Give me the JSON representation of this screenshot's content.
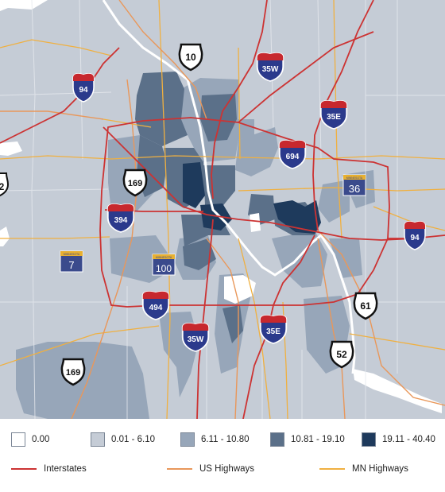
{
  "legend": {
    "classes": [
      {
        "label": "0.00",
        "color": "#ffffff"
      },
      {
        "label": "0.01 - 6.10",
        "color": "#c5ccd6"
      },
      {
        "label": "6.11 - 10.80",
        "color": "#97a6b9"
      },
      {
        "label": "10.81 - 19.10",
        "color": "#5b7089"
      },
      {
        "label": "19.11 - 40.40",
        "color": "#1e3a5c"
      }
    ],
    "lines": [
      {
        "label": "Interstates",
        "color": "#cc3333"
      },
      {
        "label": "US Highways",
        "color": "#e9975a"
      },
      {
        "label": "MN Highways",
        "color": "#f0b040"
      }
    ]
  },
  "shields": {
    "interstate": [
      "94",
      "35W",
      "35E",
      "694",
      "394",
      "494",
      "35W",
      "35E",
      "94"
    ],
    "us": [
      "10",
      "169",
      "61",
      "52",
      "169"
    ],
    "mn": [
      "36",
      "7",
      "100"
    ],
    "mn_header": "MINNESOTA",
    "edge_fragment": "2"
  },
  "colors": {
    "interstate_blue": "#2b3a8c",
    "interstate_red": "#c7282e",
    "mn_shield": "#3a4a8c",
    "mn_header": "#e8b030",
    "water": "#ffffff"
  }
}
